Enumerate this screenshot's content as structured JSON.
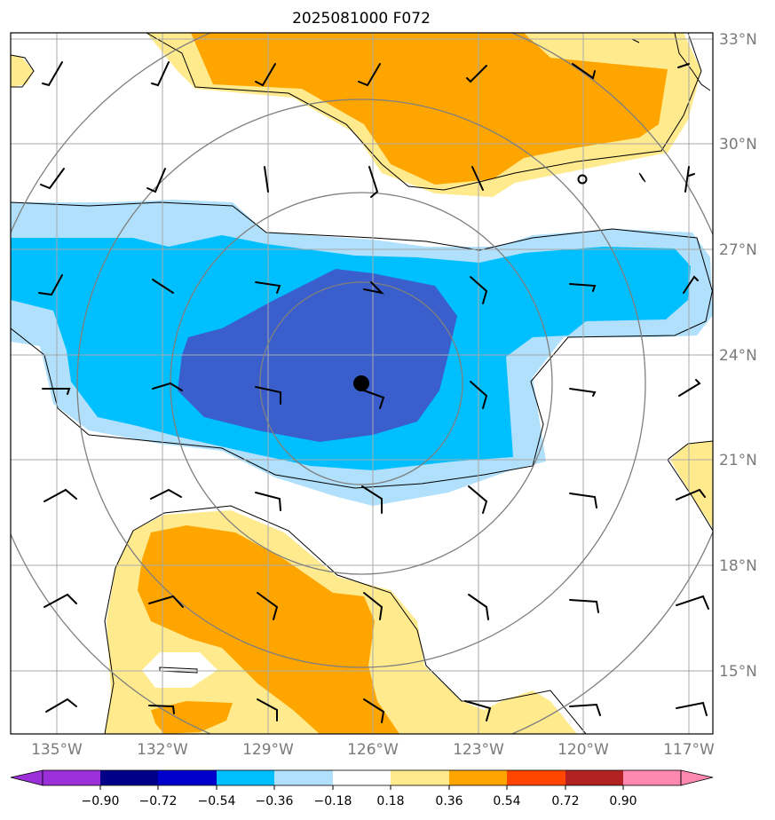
{
  "title": "2025081000 F072",
  "map": {
    "lon_ticks": [
      "135°W",
      "132°W",
      "129°W",
      "126°W",
      "123°W",
      "120°W",
      "117°W"
    ],
    "lat_ticks": [
      "33°N",
      "30°N",
      "27°N",
      "24°N",
      "21°N",
      "18°N",
      "15°N"
    ],
    "fill_colors": {
      "pos_weak": "#ffea8e",
      "pos_mod": "#ffa500",
      "neg_weak": "#b0e0fb",
      "neg_mod": "#00bfff",
      "neg_strong": "#3a5fcd"
    },
    "center_marker": "storm-center-dot",
    "wind_symbol": "wind-barb-icon"
  },
  "colorbar": {
    "tick_labels": [
      "−0.90",
      "−0.72",
      "−0.54",
      "−0.36",
      "−0.18",
      "0.18",
      "0.36",
      "0.54",
      "0.72",
      "0.90"
    ],
    "colors": [
      "#9b30d9",
      "#00008b",
      "#0000cd",
      "#3a5fcd",
      "#00bfff",
      "#b0e0fb",
      "#ffffff",
      "#ffea8e",
      "#ffa500",
      "#ff4500",
      "#b22222",
      "#ff88b0"
    ]
  }
}
